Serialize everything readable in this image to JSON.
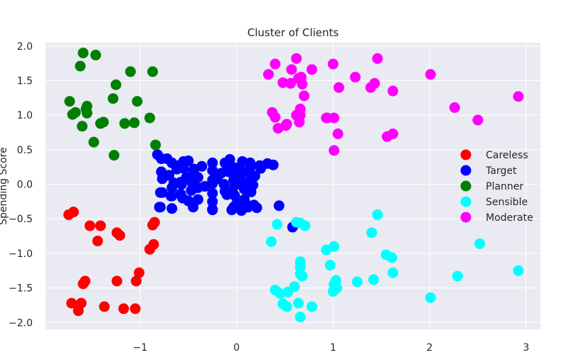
{
  "chart_data": {
    "type": "scatter",
    "title": "Cluster of Clients",
    "xlabel": "",
    "ylabel": "Spending Score",
    "xlim": [
      -1.98,
      3.15
    ],
    "ylim": [
      -2.1,
      2.05
    ],
    "xticks": [
      -1,
      0,
      1,
      2,
      3
    ],
    "xtick_labels": [
      "−1",
      "0",
      "1",
      "2",
      "3"
    ],
    "yticks": [
      -2.0,
      -1.5,
      -1.0,
      -0.5,
      0.0,
      0.5,
      1.0,
      1.5,
      2.0
    ],
    "ytick_labels": [
      "−2.0",
      "−1.5",
      "−1.0",
      "−0.5",
      "0.0",
      "0.5",
      "1.0",
      "1.5",
      "2.0"
    ],
    "grid": true,
    "background": "#eaeaf2",
    "legend_position": "center-right",
    "series": [
      {
        "name": "Careless",
        "color": "#ff0000",
        "x": [
          -1.74,
          -1.69,
          -1.52,
          -1.41,
          -1.44,
          -1.24,
          -1.21,
          -1.71,
          -1.61,
          -1.64,
          -1.57,
          -1.59,
          -1.37,
          -1.17,
          -1.05,
          -1.24,
          -1.04,
          -1.01,
          -0.9,
          -0.86,
          -0.85,
          -0.87
        ],
        "y": [
          -0.44,
          -0.4,
          -0.6,
          -0.6,
          -0.82,
          -0.7,
          -0.74,
          -1.72,
          -1.72,
          -1.83,
          -1.4,
          -1.44,
          -1.77,
          -1.8,
          -1.8,
          -1.4,
          -1.4,
          -1.28,
          -0.94,
          -0.87,
          -0.55,
          -0.59
        ]
      },
      {
        "name": "Target",
        "color": "#0000ff",
        "x": [
          -0.82,
          -0.78,
          -0.72,
          -0.67,
          -0.78,
          -0.62,
          -0.55,
          -0.5,
          -0.44,
          -0.36,
          -0.25,
          -0.12,
          -0.07,
          -0.02,
          0.06,
          0.14,
          0.24,
          0.32,
          -0.77,
          -0.7,
          -0.65,
          -0.58,
          -0.52,
          -0.44,
          -0.4,
          -0.25,
          -0.16,
          -0.08,
          0.0,
          0.06,
          0.13,
          0.19,
          -0.77,
          -0.67,
          -0.57,
          -0.46,
          -0.33,
          -0.25,
          -0.13,
          -0.03,
          0.06,
          0.17,
          -0.79,
          -0.68,
          -0.58,
          -0.47,
          -0.4,
          -0.25,
          -0.12,
          -0.02,
          0.08,
          0.15,
          -0.79,
          -0.67,
          -0.56,
          -0.45,
          -0.25,
          -0.1,
          0.0,
          0.1,
          0.21,
          -0.8,
          -0.67,
          -0.45,
          -0.25,
          -0.03,
          0.06,
          0.18,
          -0.25,
          -0.1,
          0.05,
          0.14,
          0.25,
          0.38,
          0.44,
          0.58,
          -0.25,
          -0.05,
          0.05,
          0.12,
          -0.5,
          -0.4,
          -0.6,
          -0.55,
          -0.45,
          -0.2,
          -0.02,
          0.1,
          0.16,
          0.08,
          -0.1,
          0.15,
          0.0
        ],
        "y": [
          0.43,
          0.37,
          0.37,
          0.31,
          0.18,
          0.22,
          0.33,
          0.34,
          0.22,
          0.26,
          0.31,
          0.31,
          0.36,
          0.24,
          0.33,
          0.31,
          0.27,
          0.3,
          0.08,
          0.13,
          0.02,
          0.03,
          0.1,
          0.15,
          0.1,
          0.06,
          0.16,
          0.18,
          0.11,
          0.16,
          0.04,
          0.12,
          -0.12,
          -0.05,
          0.0,
          0.02,
          -0.03,
          0.01,
          0.0,
          0.06,
          0.02,
          -0.01,
          -0.12,
          -0.17,
          -0.14,
          -0.09,
          -0.05,
          -0.13,
          -0.1,
          -0.16,
          -0.07,
          -0.11,
          -0.33,
          -0.35,
          -0.2,
          -0.27,
          -0.25,
          -0.15,
          -0.33,
          -0.29,
          -0.34,
          -0.33,
          -0.17,
          -0.33,
          -0.36,
          -0.33,
          -0.28,
          -0.3,
          0.2,
          0.21,
          0.19,
          0.24,
          0.23,
          0.28,
          -0.31,
          -0.62,
          -0.37,
          -0.37,
          -0.38,
          -0.33,
          -0.24,
          -0.22,
          0.27,
          0.23,
          0.2,
          0.08,
          -0.02,
          -0.07,
          0.12,
          -0.22,
          -0.1,
          0.01,
          -0.28
        ]
      },
      {
        "name": "Planner",
        "color": "#008000",
        "x": [
          -1.55,
          -1.59,
          -1.46,
          -1.62,
          -1.1,
          -0.87,
          -1.73,
          -1.28,
          -1.25,
          -1.67,
          -1.7,
          -1.55,
          -1.56,
          -1.38,
          -1.41,
          -1.06,
          -0.9,
          -1.6,
          -1.48,
          -1.16,
          -1.03,
          -0.84,
          -1.27
        ],
        "y": [
          1.13,
          1.9,
          1.87,
          1.71,
          1.63,
          1.63,
          1.2,
          1.24,
          1.44,
          1.04,
          1.01,
          1.03,
          1.09,
          0.9,
          0.88,
          0.89,
          0.96,
          0.84,
          0.61,
          0.88,
          1.2,
          0.57,
          0.42
        ]
      },
      {
        "name": "Sensible",
        "color": "#00ffff",
        "x": [
          0.36,
          0.42,
          0.62,
          0.66,
          0.71,
          0.66,
          0.66,
          0.66,
          0.68,
          0.93,
          0.97,
          1.01,
          1.01,
          1.04,
          1.03,
          1.0,
          1.4,
          1.46,
          1.55,
          1.61,
          1.62,
          2.52,
          2.29,
          2.01,
          2.92,
          1.42,
          1.25,
          0.4,
          0.45,
          0.53,
          0.6,
          0.52,
          0.48,
          0.64,
          0.66,
          0.78
        ],
        "y": [
          -0.83,
          -0.58,
          -0.55,
          -0.56,
          -0.6,
          -1.12,
          -1.2,
          -1.3,
          -1.33,
          -0.95,
          -1.17,
          -0.9,
          -1.45,
          -1.5,
          -1.39,
          -1.55,
          -0.7,
          -0.44,
          -1.02,
          -1.06,
          -1.28,
          -0.86,
          -1.33,
          -1.64,
          -1.25,
          -1.38,
          -1.41,
          -1.53,
          -1.58,
          -1.56,
          -1.48,
          -1.77,
          -1.73,
          -1.72,
          -1.92,
          -1.77
        ]
      },
      {
        "name": "Moderate",
        "color": "#ff00ff",
        "x": [
          0.33,
          0.4,
          0.57,
          0.62,
          0.64,
          0.67,
          0.78,
          0.68,
          0.93,
          1.0,
          1.06,
          1.23,
          1.39,
          1.43,
          1.46,
          1.62,
          2.01,
          2.26,
          2.5,
          2.92,
          1.56,
          1.62,
          1.05,
          1.01,
          0.94,
          1.01,
          0.37,
          0.4,
          0.43,
          0.51,
          0.52,
          0.62,
          0.66,
          0.65,
          0.66,
          0.56,
          0.48,
          0.7
        ],
        "y": [
          1.59,
          1.74,
          1.66,
          1.82,
          1.53,
          1.55,
          1.66,
          1.45,
          0.96,
          1.74,
          1.4,
          1.55,
          1.4,
          1.46,
          1.82,
          1.35,
          1.59,
          1.11,
          0.93,
          1.27,
          0.69,
          0.73,
          0.73,
          0.49,
          0.96,
          0.96,
          1.04,
          0.97,
          0.81,
          0.85,
          0.87,
          1.0,
          1.09,
          0.9,
          1.0,
          1.46,
          1.47,
          1.28
        ]
      }
    ]
  }
}
